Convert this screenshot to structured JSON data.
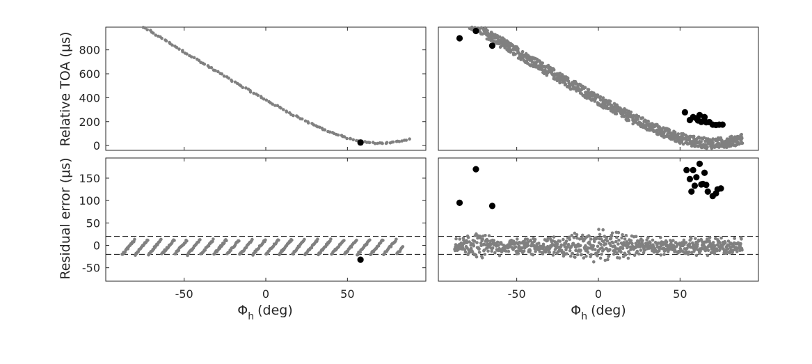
{
  "figure": {
    "xlabel_symbol": "Φ",
    "xlabel_subscript": "h",
    "xlabel_unit": "(deg)",
    "ylabel_top": "Relative TOA (μs)",
    "ylabel_bottom": "Residual error (μs)",
    "colors": {
      "inlier": "#808080",
      "outlier": "#000000",
      "axis": "#262626",
      "threshold": "#000000"
    }
  },
  "chart_data": [
    {
      "id": "toa-left",
      "type": "scatter",
      "title": "",
      "xlabel": "",
      "ylabel": "Relative TOA (μs)",
      "xlim": [
        -98,
        98
      ],
      "ylim": [
        -40,
        990
      ],
      "xticks": [],
      "yticks": [
        0,
        200,
        400,
        600,
        800
      ],
      "model": {
        "kind": "toa",
        "amp": 330,
        "spread": 10,
        "x_start": -88,
        "x_end": 88,
        "step": 1.3,
        "bands": 1
      },
      "outliers": [
        {
          "x": 58,
          "y": 25
        }
      ]
    },
    {
      "id": "toa-right",
      "type": "scatter",
      "title": "",
      "xlabel": "",
      "ylabel": "",
      "xlim": [
        -98,
        98
      ],
      "ylim": [
        -40,
        990
      ],
      "xticks": [],
      "yticks": [],
      "model": {
        "kind": "toa",
        "amp": 330,
        "spread": 55,
        "x_start": -88,
        "x_end": 88,
        "step": 0.55,
        "bands": 3
      },
      "outliers": [
        {
          "x": -85,
          "y": 897
        },
        {
          "x": -75,
          "y": 958
        },
        {
          "x": -65,
          "y": 835
        },
        {
          "x": 53,
          "y": 278
        },
        {
          "x": 56,
          "y": 213
        },
        {
          "x": 58,
          "y": 238
        },
        {
          "x": 60,
          "y": 228
        },
        {
          "x": 61,
          "y": 210
        },
        {
          "x": 62,
          "y": 255
        },
        {
          "x": 63,
          "y": 198
        },
        {
          "x": 65,
          "y": 238
        },
        {
          "x": 66,
          "y": 195
        },
        {
          "x": 68,
          "y": 196
        },
        {
          "x": 70,
          "y": 175
        },
        {
          "x": 72,
          "y": 172
        },
        {
          "x": 74,
          "y": 175
        },
        {
          "x": 76,
          "y": 175
        }
      ]
    },
    {
      "id": "residual-left",
      "type": "scatter",
      "title": "",
      "xlabel": "Φh (deg)",
      "ylabel": "Residual error (μs)",
      "xlim": [
        -98,
        98
      ],
      "ylim": [
        -80,
        195
      ],
      "xticks": [
        -50,
        0,
        50
      ],
      "yticks": [
        -50,
        0,
        50,
        100,
        150
      ],
      "threshold": [
        20,
        -20
      ],
      "model": {
        "kind": "residual_sawtooth",
        "x_start": -88,
        "x_end": 84,
        "step": 0.45,
        "period": 8,
        "amp": 17
      },
      "outliers": [
        {
          "x": 58,
          "y": -32
        }
      ]
    },
    {
      "id": "residual-right",
      "type": "scatter",
      "title": "",
      "xlabel": "Φh (deg)",
      "ylabel": "",
      "xlim": [
        -98,
        98
      ],
      "ylim": [
        -80,
        195
      ],
      "xticks": [
        -50,
        0,
        50
      ],
      "yticks": [],
      "threshold": [
        20,
        -20
      ],
      "model": {
        "kind": "residual_noise",
        "x_start": -88,
        "x_end": 88,
        "step": 0.22,
        "amp": 24
      },
      "outliers": [
        {
          "x": -85,
          "y": 95
        },
        {
          "x": -75,
          "y": 170
        },
        {
          "x": -65,
          "y": 88
        },
        {
          "x": 54,
          "y": 168
        },
        {
          "x": 56,
          "y": 148
        },
        {
          "x": 57,
          "y": 120
        },
        {
          "x": 58,
          "y": 168
        },
        {
          "x": 59,
          "y": 133
        },
        {
          "x": 60,
          "y": 152
        },
        {
          "x": 62,
          "y": 182
        },
        {
          "x": 63,
          "y": 136
        },
        {
          "x": 64,
          "y": 137
        },
        {
          "x": 65,
          "y": 162
        },
        {
          "x": 66,
          "y": 135
        },
        {
          "x": 67,
          "y": 120
        },
        {
          "x": 70,
          "y": 110
        },
        {
          "x": 72,
          "y": 116
        },
        {
          "x": 73,
          "y": 125
        },
        {
          "x": 75,
          "y": 127
        }
      ]
    }
  ]
}
